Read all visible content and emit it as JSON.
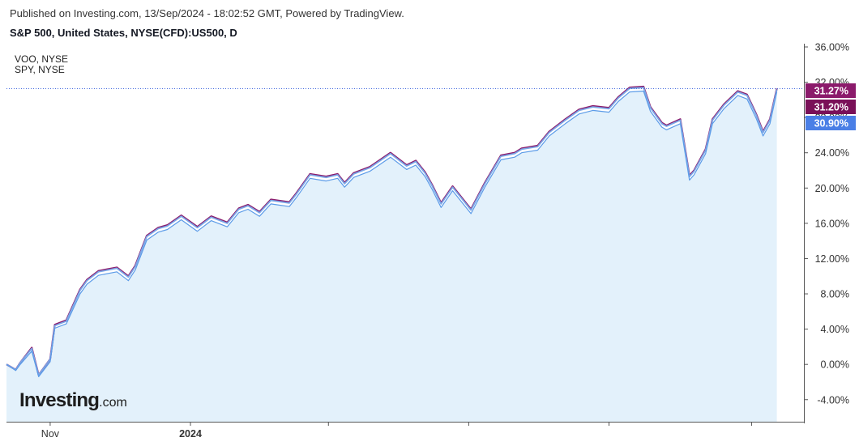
{
  "header": {
    "published": "Published on Investing.com, 13/Sep/2024 - 18:02:52 GMT, Powered by TradingView.",
    "instrument": "S&P 500, United States, NYSE(CFD):US500, D"
  },
  "legend": [
    "VOO, NYSE",
    "SPY, NYSE"
  ],
  "logo": {
    "main": "Investing",
    "suffix": ".com"
  },
  "colors": {
    "voo": "#8b1a6b",
    "spy": "#7aa6e6",
    "sp500": "#5b9be8",
    "area_fill": "#e3f1fb",
    "axis": "#555555",
    "last_price_line": "#4a6fe0",
    "badge_voo": "#8b1a6b",
    "badge_spy": "#7a1058",
    "badge_sp500": "#4a7fe6"
  },
  "chart_data": {
    "type": "area",
    "title": "S&P 500, United States, NYSE(CFD):US500, D",
    "xlabel": "",
    "ylabel": "",
    "y_unit": "%",
    "ylim": [
      -6.5,
      36
    ],
    "xlim": [
      "2023-10-13",
      "2024-09-16"
    ],
    "x_ticks": [
      {
        "date": "2023-11-01",
        "label": "Nov"
      },
      {
        "date": "2024-01-01",
        "label": "2024"
      },
      {
        "date": "2024-03-01",
        "label": ""
      },
      {
        "date": "2024-05-01",
        "label": ""
      },
      {
        "date": "2024-07-01",
        "label": ""
      },
      {
        "date": "2024-09-01",
        "label": ""
      }
    ],
    "y_ticks": [
      "36.00%",
      "32.00%",
      "28.00%",
      "24.00%",
      "20.00%",
      "16.00%",
      "12.00%",
      "8.00%",
      "4.00%",
      "0.00%",
      "-4.00%"
    ],
    "grid": false,
    "legend_position": "top-left",
    "series": [
      {
        "name": "VOO, NYSE",
        "last_label": "31.27%",
        "dates": [
          "2023-10-13",
          "2023-10-17",
          "2023-10-19",
          "2023-10-24",
          "2023-10-27",
          "2023-11-01",
          "2023-11-03",
          "2023-11-08",
          "2023-11-14",
          "2023-11-17",
          "2023-11-22",
          "2023-11-30",
          "2023-12-05",
          "2023-12-08",
          "2023-12-13",
          "2023-12-18",
          "2023-12-22",
          "2023-12-28",
          "2024-01-04",
          "2024-01-10",
          "2024-01-17",
          "2024-01-22",
          "2024-01-26",
          "2024-01-31",
          "2024-02-05",
          "2024-02-13",
          "2024-02-16",
          "2024-02-22",
          "2024-02-29",
          "2024-03-05",
          "2024-03-08",
          "2024-03-12",
          "2024-03-19",
          "2024-03-28",
          "2024-04-04",
          "2024-04-08",
          "2024-04-12",
          "2024-04-15",
          "2024-04-19",
          "2024-04-24",
          "2024-05-02",
          "2024-05-08",
          "2024-05-15",
          "2024-05-21",
          "2024-05-24",
          "2024-05-31",
          "2024-06-05",
          "2024-06-12",
          "2024-06-18",
          "2024-06-24",
          "2024-07-01",
          "2024-07-05",
          "2024-07-10",
          "2024-07-16",
          "2024-07-19",
          "2024-07-24",
          "2024-07-26",
          "2024-08-01",
          "2024-08-05",
          "2024-08-07",
          "2024-08-12",
          "2024-08-15",
          "2024-08-20",
          "2024-08-26",
          "2024-08-30",
          "2024-09-03",
          "2024-09-06",
          "2024-09-09",
          "2024-09-12"
        ],
        "values": [
          0.0,
          -0.6,
          0.2,
          1.9,
          -1.2,
          0.6,
          4.5,
          5.0,
          8.5,
          9.6,
          10.6,
          11.0,
          10.0,
          11.2,
          14.6,
          15.5,
          15.8,
          16.9,
          15.6,
          16.8,
          16.1,
          17.7,
          18.1,
          17.3,
          18.7,
          18.4,
          19.4,
          21.6,
          21.3,
          21.6,
          20.6,
          21.7,
          22.4,
          24.0,
          22.6,
          23.1,
          21.8,
          20.4,
          18.3,
          20.2,
          17.6,
          20.6,
          23.7,
          24.0,
          24.5,
          24.8,
          26.4,
          27.8,
          28.9,
          29.3,
          29.1,
          30.3,
          31.4,
          31.5,
          29.2,
          27.4,
          27.1,
          27.8,
          21.4,
          22.0,
          24.4,
          27.8,
          29.5,
          31.0,
          30.6,
          28.4,
          26.4,
          27.8,
          31.27
        ]
      },
      {
        "name": "SPY, NYSE",
        "last_label": "31.20%",
        "values": [
          0.0,
          -0.6,
          0.2,
          1.8,
          -1.2,
          0.6,
          4.4,
          4.9,
          8.4,
          9.5,
          10.5,
          10.9,
          9.9,
          11.1,
          14.5,
          15.4,
          15.7,
          16.8,
          15.5,
          16.7,
          16.0,
          17.6,
          18.0,
          17.2,
          18.6,
          18.3,
          19.3,
          21.5,
          21.2,
          21.5,
          20.5,
          21.6,
          22.3,
          23.9,
          22.5,
          23.0,
          21.7,
          20.3,
          18.2,
          20.1,
          17.5,
          20.5,
          23.6,
          23.9,
          24.4,
          24.7,
          26.3,
          27.7,
          28.8,
          29.2,
          29.0,
          30.2,
          31.3,
          31.4,
          29.1,
          27.3,
          27.0,
          27.7,
          21.3,
          21.9,
          24.3,
          27.7,
          29.4,
          30.9,
          30.5,
          28.3,
          26.3,
          27.7,
          31.2
        ]
      },
      {
        "name": "",
        "last_label": "30.90%",
        "values": [
          0.0,
          -0.7,
          0.0,
          1.5,
          -1.4,
          0.3,
          4.1,
          4.6,
          8.0,
          9.1,
          10.1,
          10.5,
          9.5,
          10.7,
          14.1,
          15.0,
          15.3,
          16.4,
          15.1,
          16.3,
          15.6,
          17.2,
          17.6,
          16.8,
          18.2,
          17.9,
          18.9,
          21.1,
          20.8,
          21.1,
          20.1,
          21.2,
          21.9,
          23.5,
          22.1,
          22.6,
          21.3,
          19.9,
          17.8,
          19.7,
          17.1,
          20.1,
          23.2,
          23.5,
          24.0,
          24.3,
          25.9,
          27.3,
          28.4,
          28.8,
          28.6,
          29.8,
          30.9,
          31.0,
          28.7,
          26.9,
          26.6,
          27.3,
          20.9,
          21.5,
          23.9,
          27.3,
          29.0,
          30.5,
          30.1,
          27.9,
          25.9,
          27.3,
          30.9
        ]
      }
    ]
  }
}
